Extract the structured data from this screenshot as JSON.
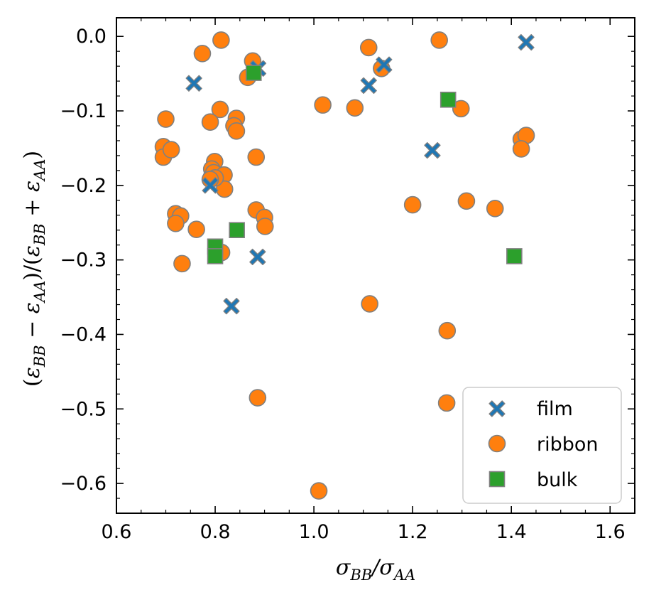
{
  "chart_data": {
    "type": "scatter",
    "xlabel": "σBB/σAA",
    "ylabel": "(εBB − εAA)/(εBB + εAA)",
    "xlim": [
      0.6,
      1.65
    ],
    "ylim": [
      -0.64,
      0.025
    ],
    "x_ticks": [
      "0.6",
      "0.8",
      "1.0",
      "1.2",
      "1.4",
      "1.6"
    ],
    "y_ticks": [
      "0.0",
      "−0.1",
      "−0.2",
      "−0.3",
      "−0.4",
      "−0.5",
      "−0.6"
    ],
    "grid": false,
    "legend_position": "lower-right",
    "series": [
      {
        "name": "film",
        "marker": "x-filled",
        "color": "#1f77b4",
        "x": [
          0.757,
          0.887,
          1.142,
          1.111,
          1.24,
          1.43,
          0.79,
          0.886,
          0.833
        ],
        "y": [
          -0.063,
          -0.043,
          -0.038,
          -0.066,
          -0.153,
          -0.008,
          -0.2,
          -0.296,
          -0.362
        ]
      },
      {
        "name": "ribbon",
        "marker": "circle",
        "color": "#ff7f0e",
        "x": [
          0.812,
          0.774,
          0.876,
          0.866,
          1.111,
          1.137,
          1.254,
          0.7,
          0.81,
          0.79,
          0.843,
          0.838,
          0.843,
          1.018,
          1.083,
          1.298,
          1.42,
          1.43,
          1.42,
          0.695,
          0.695,
          0.711,
          0.883,
          0.799,
          0.793,
          0.793,
          0.797,
          0.818,
          0.819,
          0.8,
          0.79,
          0.72,
          0.73,
          0.72,
          0.762,
          0.733,
          0.883,
          0.9,
          0.901,
          0.813,
          1.2,
          1.309,
          1.367,
          1.113,
          1.27,
          1.269,
          0.886,
          1.01
        ],
        "y": [
          -0.005,
          -0.023,
          -0.033,
          -0.055,
          -0.015,
          -0.043,
          -0.005,
          -0.111,
          -0.098,
          -0.115,
          -0.11,
          -0.12,
          -0.127,
          -0.092,
          -0.096,
          -0.097,
          -0.138,
          -0.133,
          -0.151,
          -0.148,
          -0.162,
          -0.152,
          -0.162,
          -0.168,
          -0.178,
          -0.188,
          -0.183,
          -0.186,
          -0.205,
          -0.19,
          -0.192,
          -0.238,
          -0.241,
          -0.251,
          -0.259,
          -0.305,
          -0.233,
          -0.243,
          -0.255,
          -0.29,
          -0.226,
          -0.221,
          -0.231,
          -0.359,
          -0.395,
          -0.492,
          -0.485,
          -0.61
        ]
      },
      {
        "name": "bulk",
        "marker": "square",
        "color": "#2ca02c",
        "x": [
          0.878,
          1.272,
          0.844,
          0.8,
          0.8,
          1.406
        ],
        "y": [
          -0.049,
          -0.085,
          -0.26,
          -0.282,
          -0.295,
          -0.295
        ]
      }
    ]
  }
}
